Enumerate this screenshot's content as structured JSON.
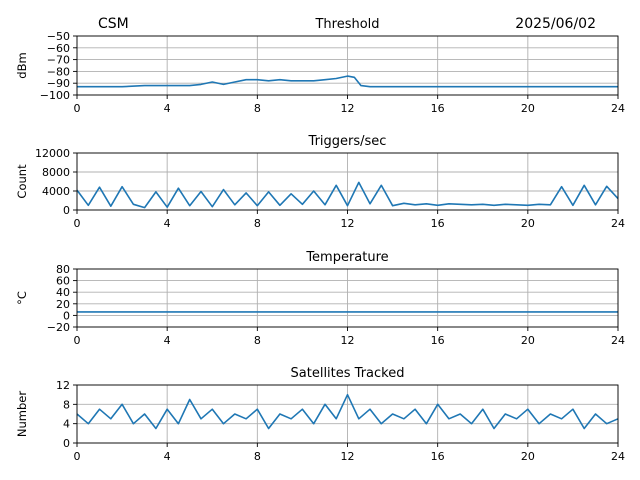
{
  "header": {
    "station": "CSM",
    "date": "2025/06/02"
  },
  "colors": {
    "series": "#1f77b4",
    "grid": "#b0b0b0"
  },
  "chart_data": [
    {
      "type": "line",
      "title": "Threshold",
      "ylabel": "dBm",
      "xlim": [
        0,
        24
      ],
      "ylim": [
        -100,
        -50
      ],
      "xticks": [
        0,
        4,
        8,
        12,
        16,
        20,
        24
      ],
      "xtick_labels": [
        "0",
        "4",
        "8",
        "12",
        "16",
        "20",
        "24"
      ],
      "yticks": [
        -100,
        -90,
        -80,
        -70,
        -60,
        -50
      ],
      "ytick_labels": [
        "−100",
        "−90",
        "−80",
        "−70",
        "−60",
        "−50"
      ],
      "grid": true,
      "x": [
        0,
        1,
        2,
        3,
        4,
        5,
        5.5,
        6,
        6.5,
        7,
        7.5,
        8,
        8.5,
        9,
        9.5,
        10,
        10.5,
        11,
        11.5,
        12,
        12.3,
        12.6,
        13,
        14,
        15,
        16,
        17,
        18,
        19,
        20,
        21,
        22,
        23,
        24
      ],
      "y": [
        -93,
        -93,
        -93,
        -92,
        -92,
        -92,
        -91,
        -89,
        -91,
        -89,
        -87,
        -87,
        -88,
        -87,
        -88,
        -88,
        -88,
        -87,
        -86,
        -84,
        -85,
        -92,
        -93,
        -93,
        -93,
        -93,
        -93,
        -93,
        -93,
        -93,
        -93,
        -93,
        -93,
        -93
      ]
    },
    {
      "type": "line",
      "title": "Triggers/sec",
      "ylabel": "Count",
      "xlim": [
        0,
        24
      ],
      "ylim": [
        0,
        12000
      ],
      "xticks": [
        0,
        4,
        8,
        12,
        16,
        20,
        24
      ],
      "xtick_labels": [
        "0",
        "4",
        "8",
        "12",
        "16",
        "20",
        "24"
      ],
      "yticks": [
        0,
        4000,
        8000,
        12000
      ],
      "ytick_labels": [
        "0",
        "4000",
        "8000",
        "12000"
      ],
      "grid": true,
      "x": [
        0,
        0.5,
        1,
        1.5,
        2,
        2.5,
        3,
        3.5,
        4,
        4.5,
        5,
        5.5,
        6,
        6.5,
        7,
        7.5,
        8,
        8.5,
        9,
        9.5,
        10,
        10.5,
        11,
        11.5,
        12,
        12.5,
        13,
        13.5,
        14,
        14.5,
        15,
        15.5,
        16,
        16.5,
        17,
        17.5,
        18,
        18.5,
        19,
        19.5,
        20,
        20.5,
        21,
        21.5,
        22,
        22.5,
        23,
        23.5,
        24
      ],
      "y": [
        4200,
        1000,
        4800,
        800,
        4900,
        1200,
        500,
        3800,
        600,
        4600,
        900,
        3900,
        700,
        4300,
        1100,
        3600,
        900,
        3800,
        1000,
        3400,
        1200,
        4000,
        1100,
        5200,
        900,
        5800,
        1300,
        5200,
        900,
        1400,
        1100,
        1300,
        1000,
        1300,
        1200,
        1100,
        1200,
        1000,
        1200,
        1100,
        1000,
        1200,
        1100,
        4900,
        1000,
        5200,
        1100,
        5000,
        2400
      ]
    },
    {
      "type": "line",
      "title": "Temperature",
      "ylabel": "°C",
      "xlim": [
        0,
        24
      ],
      "ylim": [
        -20,
        80
      ],
      "xticks": [
        0,
        4,
        8,
        12,
        16,
        20,
        24
      ],
      "xtick_labels": [
        "0",
        "4",
        "8",
        "12",
        "16",
        "20",
        "24"
      ],
      "yticks": [
        -20,
        0,
        20,
        40,
        60,
        80
      ],
      "ytick_labels": [
        "−20",
        "0",
        "20",
        "40",
        "60",
        "80"
      ],
      "grid": true,
      "x": [
        0,
        24
      ],
      "y": [
        6,
        6
      ]
    },
    {
      "type": "line",
      "title": "Satellites Tracked",
      "ylabel": "Number",
      "xlim": [
        0,
        24
      ],
      "ylim": [
        0,
        12
      ],
      "xticks": [
        0,
        4,
        8,
        12,
        16,
        20,
        24
      ],
      "xtick_labels": [
        "0",
        "4",
        "8",
        "12",
        "16",
        "20",
        "24"
      ],
      "yticks": [
        0,
        4,
        8,
        12
      ],
      "ytick_labels": [
        "0",
        "4",
        "8",
        "12"
      ],
      "grid": true,
      "x": [
        0,
        0.5,
        1,
        1.5,
        2,
        2.5,
        3,
        3.5,
        4,
        4.5,
        5,
        5.5,
        6,
        6.5,
        7,
        7.5,
        8,
        8.5,
        9,
        9.5,
        10,
        10.5,
        11,
        11.5,
        12,
        12.5,
        13,
        13.5,
        14,
        14.5,
        15,
        15.5,
        16,
        16.5,
        17,
        17.5,
        18,
        18.5,
        19,
        19.5,
        20,
        20.5,
        21,
        21.5,
        22,
        22.5,
        23,
        23.5,
        24
      ],
      "y": [
        6,
        4,
        7,
        5,
        8,
        4,
        6,
        3,
        7,
        4,
        9,
        5,
        7,
        4,
        6,
        5,
        7,
        3,
        6,
        5,
        7,
        4,
        8,
        5,
        10,
        5,
        7,
        4,
        6,
        5,
        7,
        4,
        8,
        5,
        6,
        4,
        7,
        3,
        6,
        5,
        7,
        4,
        6,
        5,
        7,
        3,
        6,
        4,
        5
      ]
    }
  ]
}
